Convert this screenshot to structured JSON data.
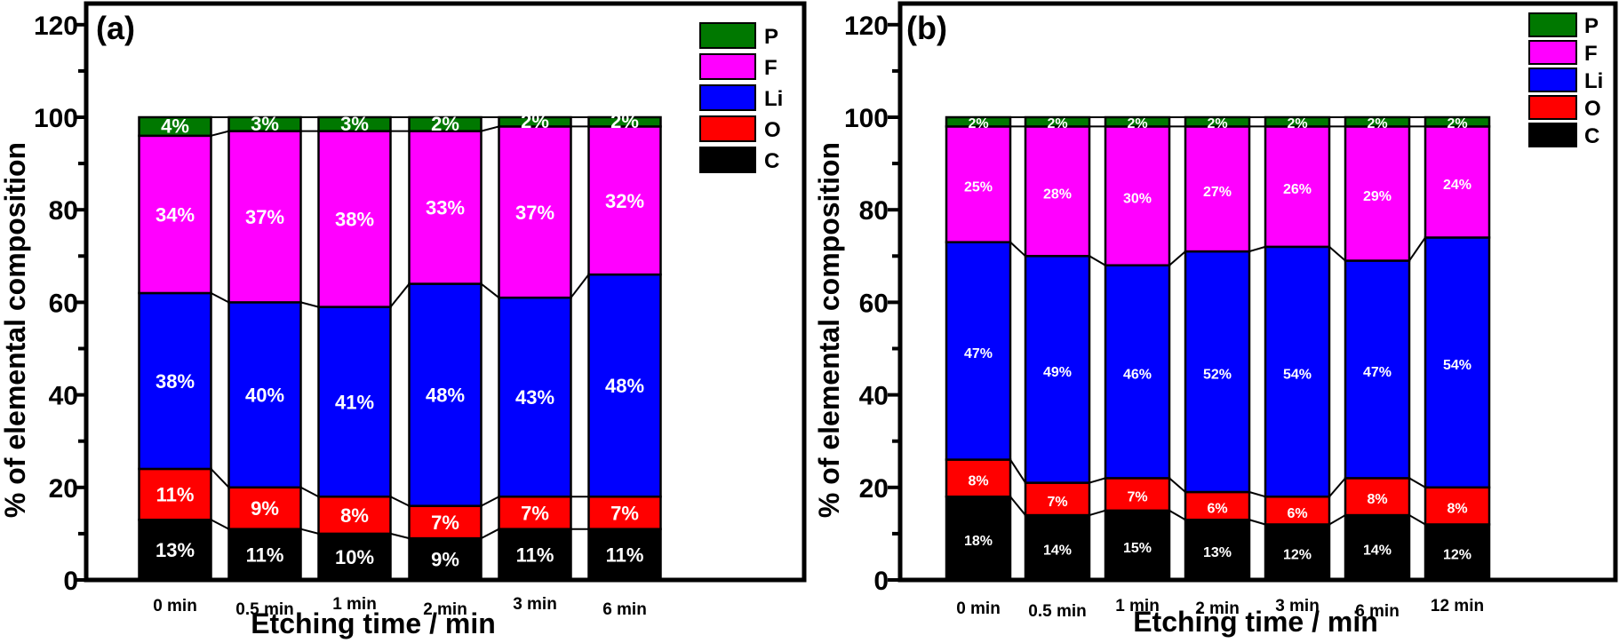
{
  "chart_data": [
    {
      "type": "bar",
      "stacked": true,
      "panel_label": "(a)",
      "title": "",
      "xlabel": "Etching time / min",
      "ylabel": "% of elemental composition",
      "ylim": [
        0,
        120
      ],
      "yticks": [
        0,
        20,
        40,
        60,
        80,
        100,
        120
      ],
      "y_minor_step": 10,
      "grid": false,
      "legend_position": "top-right",
      "categories": [
        "0 min",
        "0.5 min",
        "1 min",
        "2 min",
        "3 min",
        "6 min"
      ],
      "series": [
        {
          "name": "C",
          "color": "#000000",
          "values": [
            13,
            11,
            10,
            9,
            11,
            11
          ]
        },
        {
          "name": "O",
          "color": "#ff0000",
          "values": [
            11,
            9,
            8,
            7,
            7,
            7
          ]
        },
        {
          "name": "Li",
          "color": "#0000ff",
          "values": [
            38,
            40,
            41,
            48,
            43,
            48
          ]
        },
        {
          "name": "F",
          "color": "#ff00ff",
          "values": [
            34,
            37,
            38,
            33,
            37,
            32
          ]
        },
        {
          "name": "P",
          "color": "#007800",
          "values": [
            4,
            3,
            3,
            2,
            2,
            2
          ]
        }
      ],
      "legend_order": [
        "P",
        "F",
        "Li",
        "O",
        "C"
      ]
    },
    {
      "type": "bar",
      "stacked": true,
      "panel_label": "(b)",
      "title": "",
      "xlabel": "Etching time / min",
      "ylabel": "% of elemental composition",
      "ylim": [
        0,
        120
      ],
      "yticks": [
        0,
        20,
        40,
        60,
        80,
        100,
        120
      ],
      "y_minor_step": 10,
      "grid": false,
      "legend_position": "top-right",
      "categories": [
        "0 min",
        "0.5 min",
        "1 min",
        "2 min",
        "3 min",
        "6 min",
        "12 min"
      ],
      "series": [
        {
          "name": "C",
          "color": "#000000",
          "values": [
            18,
            14,
            15,
            13,
            12,
            14,
            12
          ]
        },
        {
          "name": "O",
          "color": "#ff0000",
          "values": [
            8,
            7,
            7,
            6,
            6,
            8,
            8
          ]
        },
        {
          "name": "Li",
          "color": "#0000ff",
          "values": [
            47,
            49,
            46,
            52,
            54,
            47,
            54
          ]
        },
        {
          "name": "F",
          "color": "#ff00ff",
          "values": [
            25,
            28,
            30,
            27,
            26,
            29,
            24
          ]
        },
        {
          "name": "P",
          "color": "#007800",
          "values": [
            2,
            2,
            2,
            2,
            2,
            2,
            2
          ]
        }
      ],
      "legend_order": [
        "P",
        "F",
        "Li",
        "O",
        "C"
      ]
    }
  ]
}
